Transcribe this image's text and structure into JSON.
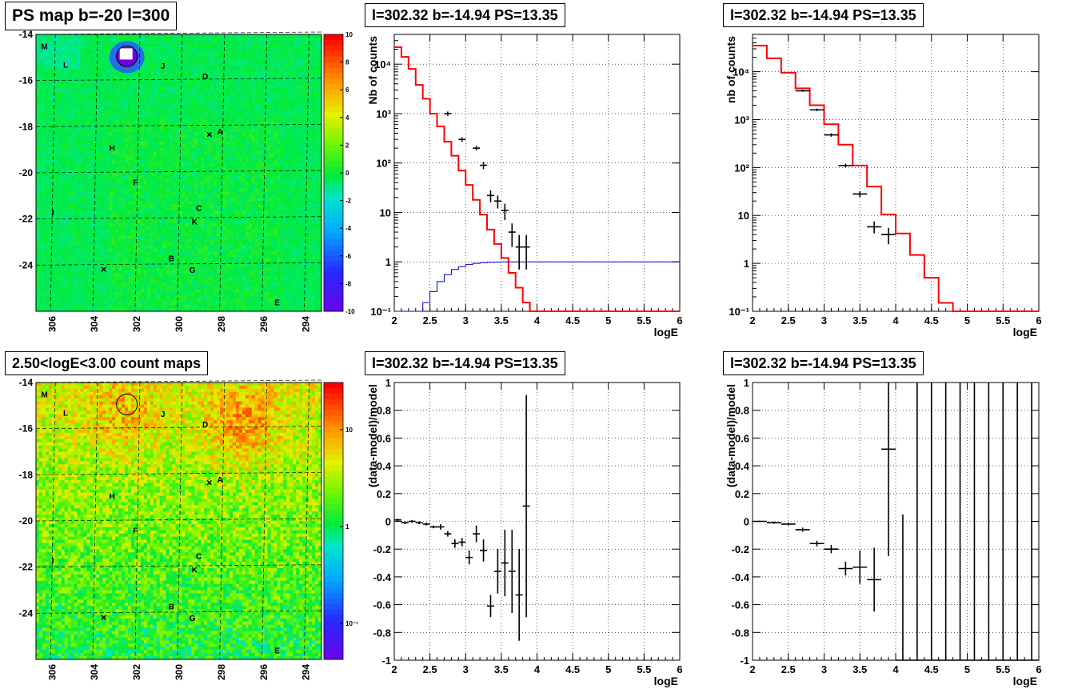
{
  "titles": {
    "psmap": "PS map b=-20 l=300",
    "countmap": "2.50<logE<3.00 count maps",
    "spec1": "l=302.32 b=-14.94 PS=13.35",
    "spec2": "l=302.32 b=-14.94 PS=13.35",
    "res1": "l=302.32 b=-14.94 PS=13.35",
    "res2": "l=302.32 b=-14.94 PS=13.35"
  },
  "maps": {
    "xticks": [
      "306",
      "304",
      "302",
      "300",
      "298",
      "296",
      "294"
    ],
    "yticks": [
      "-14",
      "-16",
      "-18",
      "-20",
      "-22",
      "-24"
    ],
    "xlim": [
      306.8,
      293.3
    ],
    "ylim": [
      -26,
      -14
    ],
    "labels": [
      {
        "t": "M",
        "x": 306.4,
        "y": -14.5
      },
      {
        "t": "L",
        "x": 305.4,
        "y": -15.3
      },
      {
        "t": "J",
        "x": 300.8,
        "y": -15.35
      },
      {
        "t": "D",
        "x": 298.8,
        "y": -15.8
      },
      {
        "t": "A",
        "x": 298.1,
        "y": -18.2
      },
      {
        "t": "H",
        "x": 303.2,
        "y": -18.9
      },
      {
        "t": "F",
        "x": 302.1,
        "y": -20.4
      },
      {
        "t": "C",
        "x": 299.1,
        "y": -21.5
      },
      {
        "t": "I",
        "x": 306.0,
        "y": -21.7
      },
      {
        "t": "K",
        "x": 299.3,
        "y": -22.1
      },
      {
        "t": "B",
        "x": 300.4,
        "y": -23.7
      },
      {
        "t": "G",
        "x": 299.4,
        "y": -24.2
      },
      {
        "t": "E",
        "x": 295.4,
        "y": -25.6
      }
    ],
    "crosses": [
      {
        "x": 298.6,
        "y": -18.35
      },
      {
        "x": 303.6,
        "y": -24.2
      }
    ],
    "circle": {
      "x": 302.5,
      "y": -14.95
    },
    "psmap_colorbar": {
      "ticks": [
        "10",
        "8",
        "6",
        "4",
        "2",
        "0",
        "-2",
        "-4",
        "-6",
        "-8",
        "-10"
      ],
      "range": [
        -10,
        10
      ]
    },
    "count_colorbar": {
      "ticks": [
        "10",
        "1",
        "10⁻¹"
      ]
    }
  },
  "colors": {
    "model": "#ff0000",
    "baseline": "#0000cc",
    "data": "#000000",
    "frame": "#000000"
  },
  "chart_data": [
    {
      "type": "line",
      "panel": "spectrum-left",
      "title": "l=302.32 b=-14.94 PS=13.35",
      "xlabel": "logE",
      "ylabel": "Nb of counts",
      "xlim": [
        2,
        6
      ],
      "ylim": [
        0.1,
        40000
      ],
      "yscale": "log",
      "grid": true,
      "xticks": [
        "2",
        "2.5",
        "3",
        "3.5",
        "4",
        "4.5",
        "5",
        "5.5",
        "6"
      ],
      "yticks": [
        {
          "v": 0.1,
          "t": "10⁻¹"
        },
        {
          "v": 1,
          "t": "1"
        },
        {
          "v": 10,
          "t": "10"
        },
        {
          "v": 100,
          "t": "10²"
        },
        {
          "v": 1000,
          "t": "10³"
        },
        {
          "v": 10000,
          "t": "10⁴"
        }
      ],
      "bin_width": 0.1,
      "series": [
        {
          "kind": "step",
          "color": "red",
          "edges_start": 2.0,
          "values": [
            22000,
            14000,
            8000,
            3800,
            2000,
            1000,
            550,
            270,
            140,
            70,
            36,
            18,
            9,
            4.5,
            2.3,
            1.2,
            0.6,
            0.3,
            0.15,
            0.1,
            0.1,
            0.1,
            0.1,
            0.1,
            0.1,
            0.1,
            0.1,
            0.1,
            0.1,
            0.1,
            0.1,
            0.1,
            0.1,
            0.1,
            0.1,
            0.1,
            0.1,
            0.1,
            0.1,
            0.1
          ]
        },
        {
          "kind": "step",
          "color": "blue",
          "edges_start": 2.0,
          "values": [
            0.1,
            0.1,
            0.1,
            0.1,
            0.15,
            0.25,
            0.4,
            0.55,
            0.7,
            0.8,
            0.88,
            0.93,
            0.96,
            0.98,
            0.99,
            1,
            1,
            1,
            1,
            1,
            1,
            1,
            1,
            1,
            1,
            1,
            1,
            1,
            1,
            1,
            1,
            1,
            1,
            1,
            1,
            1,
            1,
            1,
            1,
            1
          ]
        },
        {
          "kind": "points",
          "color": "black",
          "x": [
            2.75,
            2.95,
            3.15,
            3.25,
            3.35,
            3.45,
            3.55,
            3.65,
            3.75,
            3.85
          ],
          "y": [
            1000,
            300,
            200,
            90,
            22,
            17,
            11,
            4,
            2,
            2
          ],
          "ylo": [
            900,
            270,
            180,
            75,
            16,
            12,
            7,
            2,
            0.7,
            0.7
          ],
          "yhi": [
            1100,
            330,
            220,
            105,
            28,
            22,
            15,
            6,
            3.5,
            3.5
          ]
        }
      ]
    },
    {
      "type": "line",
      "panel": "spectrum-right",
      "title": "l=302.32 b=-14.94 PS=13.35",
      "xlabel": "logE",
      "ylabel": "nb of counts",
      "xlim": [
        2,
        6
      ],
      "ylim": [
        0.1,
        60000
      ],
      "yscale": "log",
      "grid": true,
      "xticks": [
        "2",
        "2.5",
        "3",
        "3.5",
        "4",
        "4.5",
        "5",
        "5.5",
        "6"
      ],
      "yticks": [
        {
          "v": 0.1,
          "t": "10⁻¹"
        },
        {
          "v": 1,
          "t": "1"
        },
        {
          "v": 10,
          "t": "10"
        },
        {
          "v": 100,
          "t": "10²"
        },
        {
          "v": 1000,
          "t": "10³"
        },
        {
          "v": 10000,
          "t": "10⁴"
        }
      ],
      "bin_width": 0.2,
      "series": [
        {
          "kind": "step",
          "color": "red",
          "edges_start": 2.0,
          "values": [
            35000,
            19000,
            9500,
            4500,
            2000,
            800,
            300,
            110,
            40,
            10.5,
            4.2,
            1.5,
            0.5,
            0.15,
            0.1,
            0.1,
            0.1,
            0.1,
            0.1,
            0.1
          ]
        },
        {
          "kind": "points",
          "color": "black",
          "x": [
            2.7,
            2.9,
            3.1,
            3.3,
            3.5,
            3.7,
            3.9
          ],
          "y": [
            4000,
            1600,
            480,
            110,
            28,
            5.8,
            4
          ],
          "ylo": [
            3800,
            1500,
            440,
            100,
            24,
            4.2,
            2.5
          ],
          "yhi": [
            4200,
            1700,
            520,
            120,
            32,
            7.5,
            5.5
          ]
        }
      ]
    },
    {
      "type": "scatter",
      "panel": "residual-left",
      "title": "l=302.32 b=-14.94 PS=13.35",
      "xlabel": "logE",
      "ylabel": "(data-model)/model",
      "xlim": [
        2,
        6
      ],
      "ylim": [
        -1,
        1
      ],
      "grid": true,
      "xticks": [
        "2",
        "2.5",
        "3",
        "3.5",
        "4",
        "4.5",
        "5",
        "5.5",
        "6"
      ],
      "yticks": [
        "-1",
        "-0.8",
        "-0.6",
        "-0.4",
        "-0.2",
        "0",
        "0.2",
        "0.4",
        "0.6",
        "0.8",
        "1"
      ],
      "bin_width": 0.1,
      "x": [
        2.05,
        2.15,
        2.25,
        2.35,
        2.45,
        2.55,
        2.65,
        2.75,
        2.85,
        2.95,
        3.05,
        3.15,
        3.25,
        3.35,
        3.45,
        3.55,
        3.65,
        3.75,
        3.85
      ],
      "y": [
        0.01,
        -0.01,
        0,
        -0.01,
        -0.02,
        -0.04,
        -0.04,
        -0.09,
        -0.16,
        -0.15,
        -0.26,
        -0.09,
        -0.21,
        -0.61,
        -0.36,
        -0.3,
        -0.36,
        -0.53,
        0.11
      ],
      "err": [
        0.01,
        0.01,
        0.01,
        0.01,
        0.01,
        0.01,
        0.02,
        0.02,
        0.03,
        0.03,
        0.05,
        0.06,
        0.08,
        0.08,
        0.16,
        0.24,
        0.3,
        0.33,
        0.8
      ]
    },
    {
      "type": "scatter",
      "panel": "residual-right",
      "title": "l=302.32 b=-14.94 PS=13.35",
      "xlabel": "logE",
      "ylabel": "(data-model)/model",
      "xlim": [
        2,
        6
      ],
      "ylim": [
        -1,
        1
      ],
      "grid": true,
      "xticks": [
        "2",
        "2.5",
        "3",
        "3.5",
        "4",
        "4.5",
        "5",
        "5.5",
        "6"
      ],
      "yticks": [
        "-1",
        "-0.8",
        "-0.6",
        "-0.4",
        "-0.2",
        "0",
        "0.2",
        "0.4",
        "0.6",
        "0.8",
        "1"
      ],
      "bin_width": 0.2,
      "x": [
        2.1,
        2.3,
        2.5,
        2.7,
        2.9,
        3.1,
        3.3,
        3.5,
        3.7,
        3.9,
        4.1,
        4.3,
        4.5,
        4.7,
        4.9,
        5.1,
        5.3,
        5.5,
        5.7,
        5.9
      ],
      "y": [
        0,
        -0.01,
        -0.02,
        -0.06,
        -0.16,
        -0.2,
        -0.34,
        -0.33,
        -0.42,
        0.52,
        -1,
        -1,
        -1,
        -1,
        -1,
        -1,
        -1,
        -1,
        -1,
        -1
      ],
      "err": [
        0.005,
        0.008,
        0.01,
        0.015,
        0.02,
        0.03,
        0.05,
        0.12,
        0.23,
        0.77,
        1.05,
        2,
        2,
        2,
        2,
        2,
        2,
        2,
        2,
        2
      ]
    }
  ]
}
